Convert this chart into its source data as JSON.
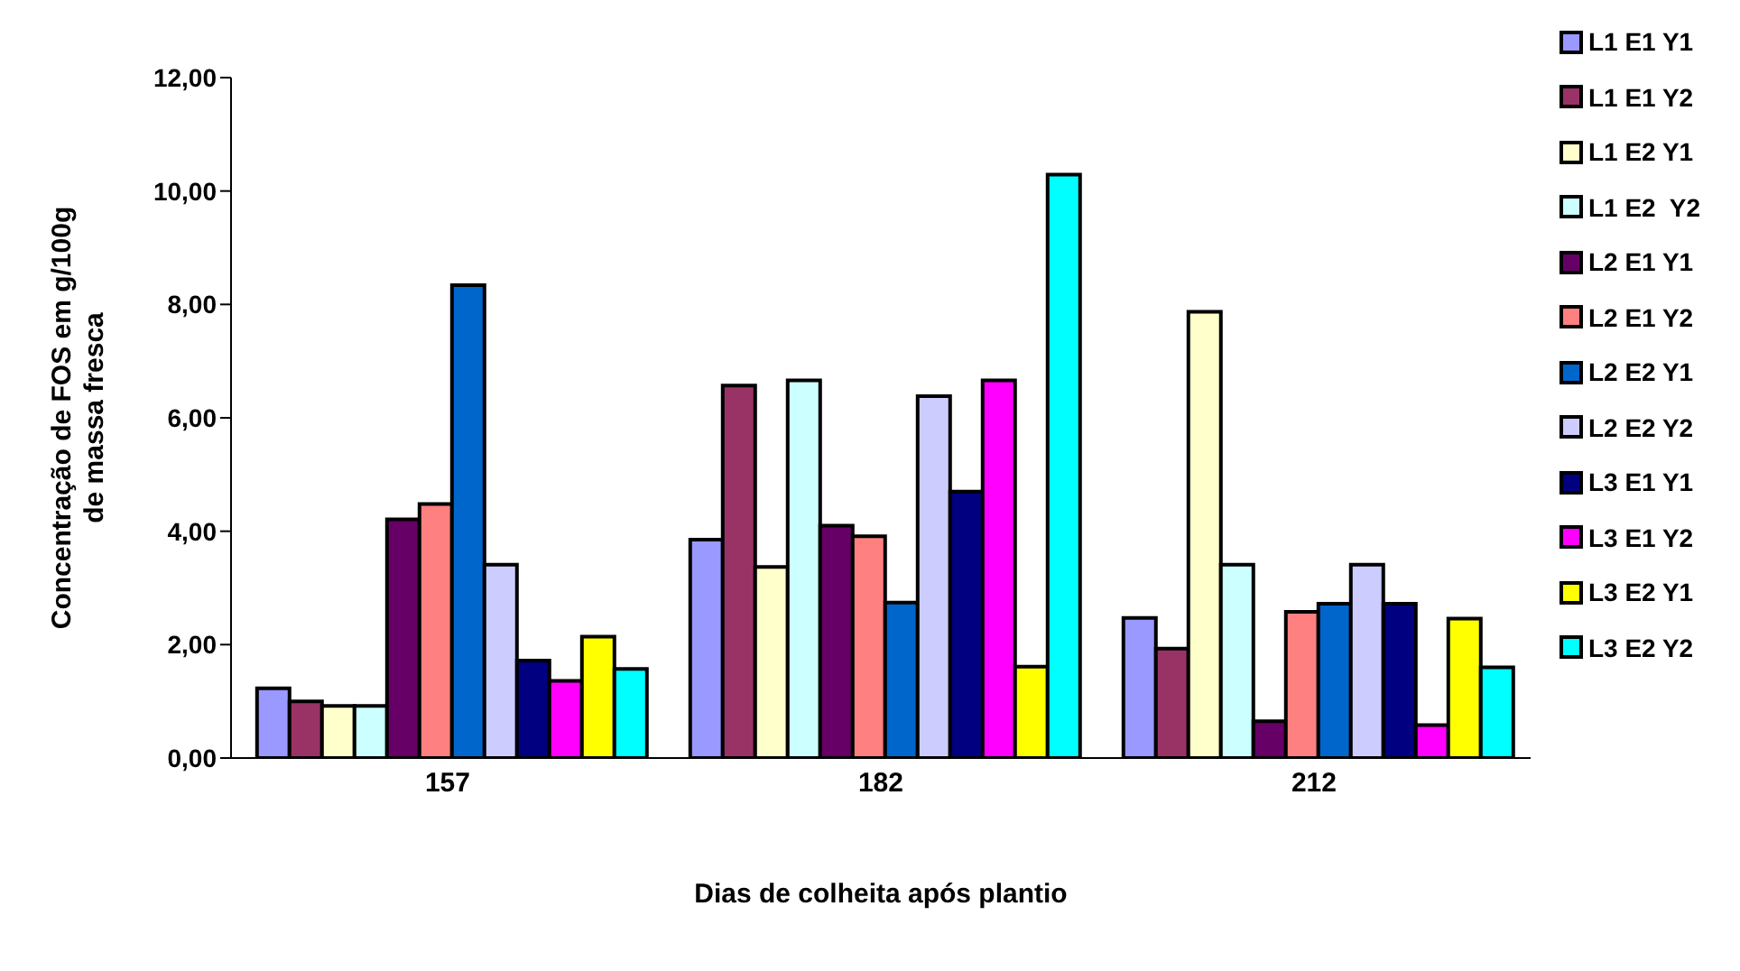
{
  "chart_data": {
    "type": "bar",
    "xlabel": "Dias de colheita após plantio",
    "ylabel": "Concentração de FOS em g/100g de massa fresca",
    "categories": [
      "157",
      "182",
      "212"
    ],
    "series": [
      {
        "name": "L1 E1 Y1",
        "color": "#9999ff",
        "values": [
          1.23,
          3.85,
          2.47
        ]
      },
      {
        "name": "L1 E1 Y2",
        "color": "#993366",
        "values": [
          1.0,
          6.57,
          1.93
        ]
      },
      {
        "name": "L1 E2 Y1",
        "color": "#ffffcc",
        "values": [
          0.92,
          3.37,
          7.87
        ]
      },
      {
        "name": "L1 E2  Y2",
        "color": "#ccffff",
        "values": [
          0.92,
          6.66,
          3.41
        ]
      },
      {
        "name": "L2 E1 Y1",
        "color": "#660066",
        "values": [
          4.21,
          4.1,
          0.65
        ]
      },
      {
        "name": "L2 E1 Y2",
        "color": "#ff8080",
        "values": [
          4.48,
          3.91,
          2.58
        ]
      },
      {
        "name": "L2 E2 Y1",
        "color": "#0066cc",
        "values": [
          8.34,
          2.74,
          2.72
        ]
      },
      {
        "name": "L2 E2 Y2",
        "color": "#ccccff",
        "values": [
          3.41,
          6.38,
          3.41
        ]
      },
      {
        "name": "L3 E1 Y1",
        "color": "#000080",
        "values": [
          1.72,
          4.7,
          2.72
        ]
      },
      {
        "name": "L3 E1 Y2",
        "color": "#ff00ff",
        "values": [
          1.36,
          6.66,
          0.58
        ]
      },
      {
        "name": "L3 E2 Y1",
        "color": "#ffff00",
        "values": [
          2.14,
          1.61,
          2.46
        ]
      },
      {
        "name": "L3 E2 Y2",
        "color": "#00ffff",
        "values": [
          1.57,
          10.29,
          1.6
        ]
      }
    ],
    "ylim": [
      0,
      12
    ],
    "yticks": [
      {
        "value": 0,
        "label": "0,00"
      },
      {
        "value": 2,
        "label": "2,00"
      },
      {
        "value": 4,
        "label": "4,00"
      },
      {
        "value": 6,
        "label": "6,00"
      },
      {
        "value": 8,
        "label": "8,00"
      },
      {
        "value": 10,
        "label": "10,00"
      },
      {
        "value": 12,
        "label": "12,00"
      }
    ],
    "grid": false,
    "legend": "right"
  }
}
